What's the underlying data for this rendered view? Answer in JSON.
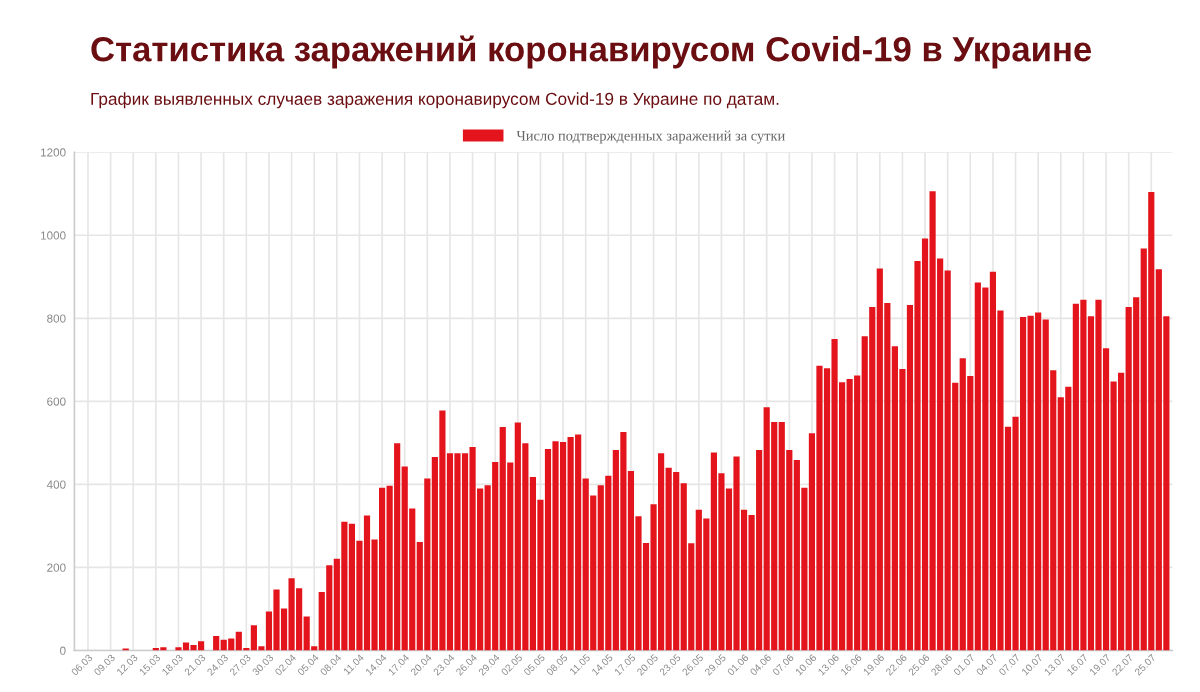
{
  "chart_data": {
    "type": "bar",
    "title": "Статистика заражений коронавирусом Covid-19 в Украине",
    "subtitle": "График выявленных случаев заражения коронавирусом Covid-19 в Украине по датам.",
    "categories": [
      null,
      "06.03",
      null,
      null,
      "09.03",
      null,
      null,
      "12.03",
      null,
      null,
      "15.03",
      null,
      null,
      "18.03",
      null,
      null,
      "21.03",
      null,
      null,
      "24.03",
      null,
      null,
      "27.03",
      null,
      null,
      "30.03",
      null,
      null,
      "02.04",
      null,
      null,
      "05.04",
      null,
      null,
      "08.04",
      null,
      null,
      "11.04",
      null,
      null,
      "14.04",
      null,
      null,
      "17.04",
      null,
      null,
      "20.04",
      null,
      null,
      "23.04",
      null,
      null,
      "26.04",
      null,
      null,
      "29.04",
      null,
      null,
      "02.05",
      null,
      null,
      "05.05",
      null,
      null,
      "08.05",
      null,
      null,
      "11.05",
      null,
      null,
      "14.05",
      null,
      null,
      "17.05",
      null,
      null,
      "20.05",
      null,
      null,
      "23.05",
      null,
      null,
      "26.05",
      null,
      null,
      "29.05",
      null,
      null,
      "01.06",
      null,
      null,
      "04.06",
      null,
      null,
      "07.06",
      null,
      null,
      "10.06",
      null,
      null,
      "13.06",
      null,
      null,
      "16.06",
      null,
      null,
      "19.06",
      null,
      null,
      "22.06",
      null,
      null,
      "25.06",
      null,
      null,
      "28.06",
      null,
      null,
      "01.07",
      null,
      null,
      "04.07",
      null,
      null,
      "07.07",
      null,
      null,
      "10.07",
      null,
      null,
      "13.07",
      null,
      null,
      "16.07",
      null,
      null,
      "19.07",
      null,
      null,
      "22.07",
      null,
      null,
      "25.07",
      null,
      null
    ],
    "series": [
      {
        "name": "Число подтвержденных заражений за сутки",
        "color": "#e3141c",
        "values": [
          0,
          0,
          0,
          0,
          0,
          0,
          5,
          0,
          0,
          0,
          6,
          8,
          0,
          8,
          19,
          13,
          22,
          0,
          35,
          26,
          29,
          45,
          6,
          61,
          10,
          94,
          147,
          101,
          174,
          150,
          82,
          10,
          141,
          205,
          221,
          310,
          305,
          264,
          325,
          267,
          392,
          397,
          499,
          443,
          342,
          261,
          414,
          466,
          578,
          475,
          475,
          475,
          490,
          390,
          398,
          454,
          538,
          453,
          549,
          499,
          418,
          363,
          485,
          504,
          502,
          514,
          520,
          414,
          373,
          398,
          421,
          483,
          526,
          432,
          323,
          259,
          352,
          475,
          440,
          430,
          403,
          258,
          339,
          318,
          477,
          427,
          390,
          467,
          339,
          326,
          483,
          586,
          550,
          550,
          483,
          459,
          392,
          523,
          686,
          680,
          750,
          646,
          654,
          662,
          757,
          827,
          920,
          837,
          733,
          678,
          832,
          938,
          992,
          1106,
          944,
          915,
          645,
          704,
          661,
          886,
          874,
          912,
          819,
          539,
          563,
          803,
          806,
          814,
          797,
          675,
          610,
          635,
          835,
          845,
          805,
          845,
          728,
          648,
          669,
          827,
          851,
          968,
          1104,
          918,
          805
        ]
      }
    ],
    "ylim": [
      0,
      1200
    ],
    "yticks": [
      0,
      200,
      400,
      600,
      800,
      1000,
      1200
    ],
    "grid": true,
    "legend": "top"
  }
}
